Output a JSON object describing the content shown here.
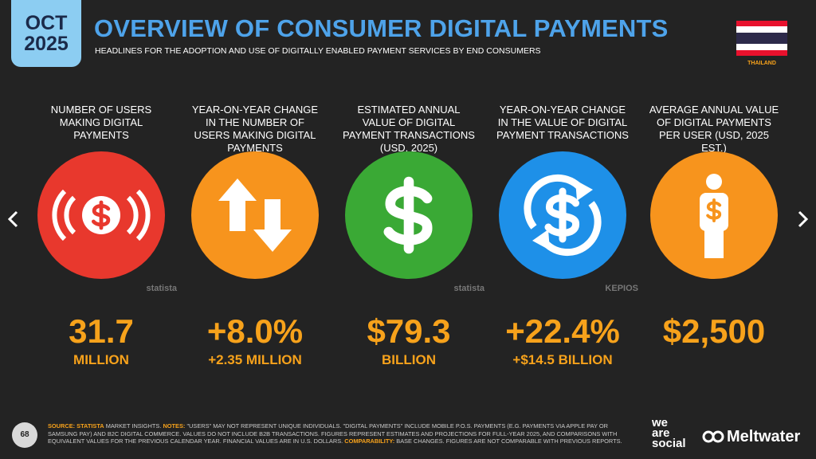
{
  "header": {
    "month": "OCT",
    "year": "2025",
    "title": "OVERVIEW OF CONSUMER DIGITAL PAYMENTS",
    "subtitle": "HEADLINES FOR THE ADOPTION AND USE OF DIGITALLY ENABLED PAYMENT SERVICES BY END CONSUMERS",
    "country": "THAILAND"
  },
  "cards": [
    {
      "label": "NUMBER OF USERS MAKING DIGITAL PAYMENTS",
      "value": "31.7",
      "sub": "MILLION",
      "credit": "statista"
    },
    {
      "label": "YEAR-ON-YEAR CHANGE IN THE NUMBER OF USERS MAKING DIGITAL PAYMENTS",
      "value": "+8.0%",
      "sub": "+2.35 MILLION"
    },
    {
      "label": "ESTIMATED ANNUAL VALUE OF DIGITAL PAYMENT TRANSACTIONS (USD, 2025)",
      "value": "$79.3",
      "sub": "BILLION",
      "credit": "statista"
    },
    {
      "label": "YEAR-ON-YEAR CHANGE IN THE VALUE OF DIGITAL PAYMENT TRANSACTIONS",
      "value": "+22.4%",
      "sub": "+$14.5 BILLION",
      "credit": "KEPIOS"
    },
    {
      "label": "AVERAGE ANNUAL VALUE OF DIGITAL PAYMENTS PER USER (USD, 2025 EST.)",
      "value": "$2,500"
    }
  ],
  "footer": {
    "page": "68",
    "notes": [
      {
        "text": "SOURCE:",
        "accent": true
      },
      {
        "text": "STATISTA",
        "accent": true
      },
      {
        "text": "MARKET INSIGHTS.",
        "accent": false
      },
      {
        "text": "NOTES:",
        "accent": true
      },
      {
        "text": "\"USERS\" MAY NOT REPRESENT UNIQUE INDIVIDUALS. \"DIGITAL PAYMENTS\" INCLUDE MOBILE P.O.S. PAYMENTS (E.G. PAYMENTS VIA APPLE PAY OR SAMSUNG PAY) AND B2C DIGITAL COMMERCE. VALUES DO NOT INCLUDE B2B TRANSACTIONS. FIGURES REPRESENT ESTIMATES AND PROJECTIONS FOR FULL-YEAR 2025, AND COMPARISONS WITH EQUIVALENT VALUES FOR THE PREVIOUS CALENDAR YEAR. FINANCIAL VALUES ARE IN U.S. DOLLARS.",
        "accent": false
      },
      {
        "text": "COMPARABILITY:",
        "accent": true
      },
      {
        "text": "BASE CHANGES. FIGURES ARE NOT COMPARABLE WITH PREVIOUS REPORTS.",
        "accent": false
      }
    ],
    "brand1": [
      "we",
      "are",
      "social"
    ],
    "brand2": "Meltwater"
  }
}
